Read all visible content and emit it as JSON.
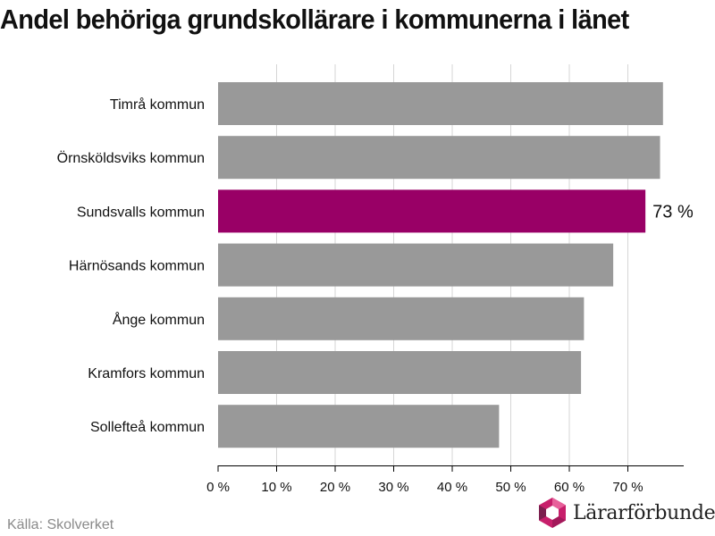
{
  "chart_data": {
    "type": "bar",
    "orientation": "horizontal",
    "title": "Andel behöriga grundskollärare i kommunerna i länet",
    "categories": [
      "Timrå kommun",
      "Örnsköldsviks kommun",
      "Sundsvalls kommun",
      "Härnösands kommun",
      "Ånge kommun",
      "Kramfors kommun",
      "Sollefteå kommun"
    ],
    "values": [
      76,
      75.5,
      73,
      67.5,
      62.5,
      62,
      48
    ],
    "highlight_index": 2,
    "data_labels": [
      "",
      "",
      "73 %",
      "",
      "",
      "",
      ""
    ],
    "x_ticks": [
      0,
      10,
      20,
      30,
      40,
      50,
      60,
      70
    ],
    "x_tick_labels": [
      "0 %",
      "10 %",
      "20 %",
      "30 %",
      "40 %",
      "50 %",
      "60 %",
      "70 %"
    ],
    "xlim": [
      0,
      80
    ],
    "grid": true,
    "colors": {
      "bar": "#999999",
      "highlight": "#990066",
      "grid": "#d6d6d6",
      "axis": "#000000"
    }
  },
  "footer": {
    "source": "Källa: Skolverket",
    "brand": "Lärarförbundet",
    "brand_icon": "lararforbundet-logo-icon"
  }
}
